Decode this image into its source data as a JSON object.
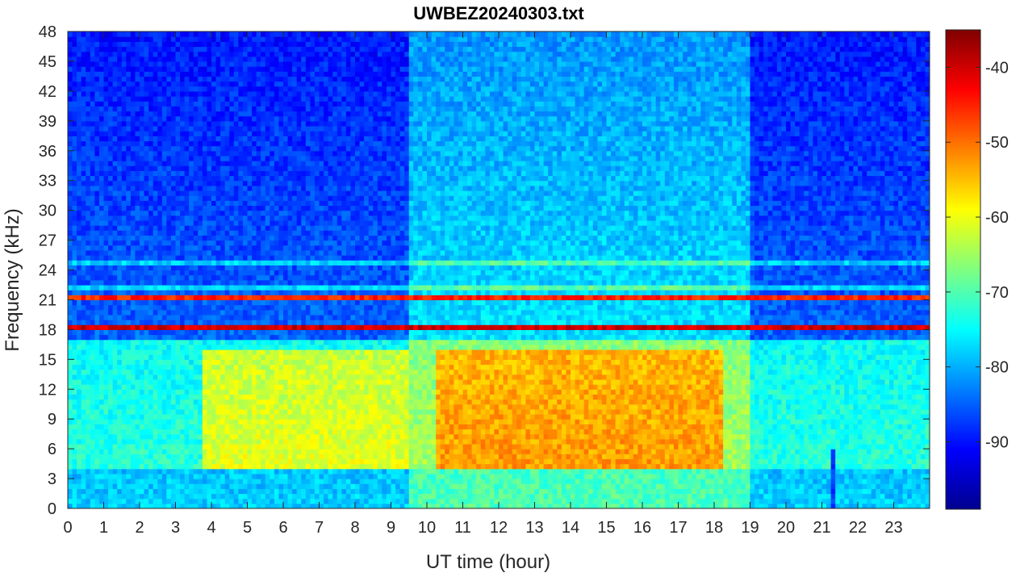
{
  "chart_data": {
    "type": "heatmap",
    "title": "UWBEZ20240303.txt",
    "xlabel": "UT time (hour)",
    "ylabel": "Frequency (kHz)",
    "xlim": [
      0,
      24
    ],
    "ylim": [
      0,
      48
    ],
    "x_ticks": [
      "0",
      "1",
      "2",
      "3",
      "4",
      "5",
      "6",
      "7",
      "8",
      "9",
      "10",
      "11",
      "12",
      "13",
      "14",
      "15",
      "16",
      "17",
      "18",
      "19",
      "20",
      "21",
      "22",
      "23"
    ],
    "y_ticks": [
      "0",
      "3",
      "6",
      "9",
      "12",
      "15",
      "18",
      "21",
      "24",
      "27",
      "30",
      "33",
      "36",
      "39",
      "42",
      "45",
      "48"
    ],
    "colormap": "jet",
    "clim": [
      -99,
      -35
    ],
    "colorbar_ticks": [
      "-40",
      "-50",
      "-60",
      "-70",
      "-80",
      "-90"
    ],
    "features": {
      "strong_lines_khz": [
        18.3,
        21.4
      ],
      "weaker_lines_khz": [
        24.9,
        22.1,
        4.0
      ],
      "active_band_khz": [
        4,
        16
      ],
      "active_intervals_hour": [
        [
          3.8,
          9.5
        ],
        [
          10.3,
          18.2
        ]
      ],
      "dark_gap_hour": 21.3
    }
  }
}
